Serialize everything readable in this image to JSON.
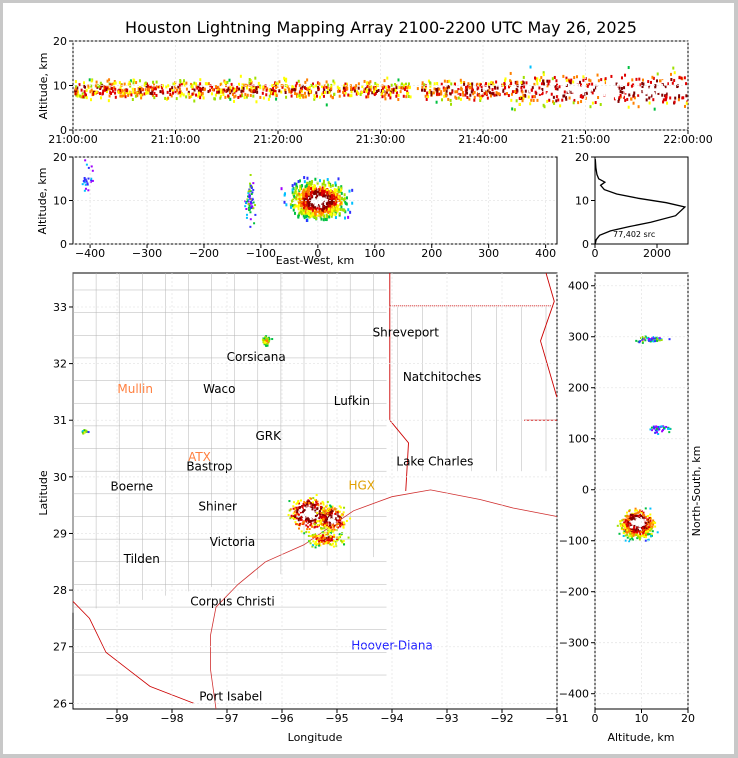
{
  "title": "Houston Lightning Mapping Array 2100-2200 UTC May 26, 2025",
  "colors": {
    "state_border": "#cc0000",
    "county_border": "#b4b4b4",
    "coast": "#d03030",
    "density": [
      "#a000ff",
      "#3030ff",
      "#00c0ff",
      "#00c040",
      "#a0e000",
      "#ffff00",
      "#ff8000",
      "#e00000",
      "#800000",
      "#ffffff"
    ]
  },
  "chart_data": [
    {
      "id": "time-altitude",
      "type": "heatmap",
      "title": "",
      "xlabel": "",
      "ylabel": "Altitude, km",
      "xlim": [
        "21:00:00",
        "22:00:00"
      ],
      "ylim": [
        0,
        20
      ],
      "xticks": [
        "21:00:00",
        "21:10:00",
        "21:20:00",
        "21:30:00",
        "21:40:00",
        "21:50:00",
        "22:00:00"
      ],
      "yticks": [
        0,
        10,
        20
      ],
      "grid": true
    },
    {
      "id": "ew-altitude",
      "type": "heatmap",
      "xlabel": "East-West, km",
      "ylabel": "Altitude, km",
      "xlim": [
        -430,
        420
      ],
      "ylim": [
        0,
        20
      ],
      "xticks": [
        -400,
        -300,
        -200,
        -100,
        0,
        100,
        200,
        300,
        400
      ],
      "yticks": [
        0,
        10,
        20
      ],
      "grid": true
    },
    {
      "id": "altitude-histogram",
      "type": "line",
      "xlabel": "",
      "ylabel": "",
      "xlim": [
        0,
        3000
      ],
      "ylim": [
        0,
        20
      ],
      "xticks": [
        0,
        2000
      ],
      "yticks": [
        0,
        10,
        20
      ],
      "annotation": "77,402 src",
      "x": [
        5,
        40,
        150,
        500,
        1100,
        1800,
        2600,
        2900,
        2300,
        1400,
        700,
        300,
        180,
        320,
        120,
        60,
        30,
        10
      ],
      "y": [
        0,
        1,
        2,
        3,
        4,
        5,
        6.5,
        8.5,
        9.5,
        10.5,
        11.5,
        12.5,
        13.5,
        14.2,
        15,
        16,
        17.5,
        19.5
      ]
    },
    {
      "id": "plan-view-map",
      "type": "heatmap",
      "xlabel": "Longitude",
      "ylabel": "Latitude",
      "xlim": [
        -99.8,
        -91
      ],
      "ylim": [
        25.9,
        33.6
      ],
      "xticks": [
        -99,
        -98,
        -97,
        -96,
        -95,
        -94,
        -93,
        -92,
        -91
      ],
      "yticks": [
        26,
        27,
        28,
        29,
        30,
        31,
        32,
        33
      ],
      "city_labels": [
        {
          "name": "Shreveport",
          "lon": -93.75,
          "lat": 32.55,
          "color": "#000000"
        },
        {
          "name": "Corsicana",
          "lon": -96.47,
          "lat": 32.12,
          "color": "#000000"
        },
        {
          "name": "Mullin",
          "lon": -98.67,
          "lat": 31.55,
          "color": "#ff8040"
        },
        {
          "name": "Waco",
          "lon": -97.14,
          "lat": 31.55,
          "color": "#000000"
        },
        {
          "name": "Natchitoches",
          "lon": -93.09,
          "lat": 31.76,
          "color": "#000000"
        },
        {
          "name": "Lufkin",
          "lon": -94.73,
          "lat": 31.34,
          "color": "#000000"
        },
        {
          "name": "GRK",
          "lon": -96.25,
          "lat": 30.72,
          "color": "#000000"
        },
        {
          "name": "ATX",
          "lon": -97.5,
          "lat": 30.35,
          "color": "#ff8040"
        },
        {
          "name": "Bastrop",
          "lon": -97.32,
          "lat": 30.18,
          "color": "#000000"
        },
        {
          "name": "Lake Charles",
          "lon": -93.22,
          "lat": 30.27,
          "color": "#000000"
        },
        {
          "name": "Boerne",
          "lon": -98.73,
          "lat": 29.83,
          "color": "#000000"
        },
        {
          "name": "HGX",
          "lon": -94.55,
          "lat": 29.85,
          "color": "#e0a000"
        },
        {
          "name": "Shiner",
          "lon": -97.17,
          "lat": 29.48,
          "color": "#000000"
        },
        {
          "name": "Victoria",
          "lon": -96.9,
          "lat": 28.85,
          "color": "#000000"
        },
        {
          "name": "Tilden",
          "lon": -98.55,
          "lat": 28.55,
          "color": "#000000"
        },
        {
          "name": "Corpus Christi",
          "lon": -96.9,
          "lat": 27.8,
          "color": "#000000"
        },
        {
          "name": "Hoover-Diana",
          "lon": -94.0,
          "lat": 27.02,
          "color": "#2020ff"
        },
        {
          "name": "Port Isabel",
          "lon": -96.93,
          "lat": 26.12,
          "color": "#000000"
        }
      ],
      "grid": true
    },
    {
      "id": "altitude-ns",
      "type": "heatmap",
      "xlabel": "Altitude, km",
      "ylabel": "North-South, km",
      "xlim": [
        0,
        20
      ],
      "ylim": [
        -430,
        425
      ],
      "xticks": [
        0,
        10,
        20
      ],
      "yticks": [
        -400,
        -300,
        -200,
        -100,
        0,
        100,
        200,
        300,
        400
      ],
      "grid": true
    }
  ]
}
